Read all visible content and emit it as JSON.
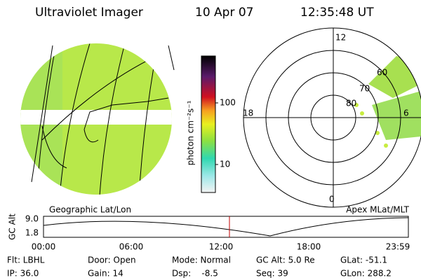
{
  "header": {
    "title": "Ultraviolet Imager",
    "date": "10 Apr 07",
    "time": "12:35:48 UT"
  },
  "colorbar": {
    "label": "photon cm⁻²s⁻¹",
    "ticks": [
      100,
      10
    ]
  },
  "geo_caption": "Geographic Lat/Lon",
  "polar": {
    "caption": "Apex MLat/MLT",
    "mlt": {
      "top": "12",
      "left": "18",
      "right": "6",
      "bottom": "0"
    },
    "mlat": [
      80,
      70,
      60
    ]
  },
  "altitude": {
    "ylabel": "GC Alt",
    "yticks": [
      "9.0",
      "1.8"
    ],
    "xticks": [
      "00:00",
      "06:00",
      "12:00",
      "18:00",
      "23:59"
    ]
  },
  "footer": [
    [
      "Flt: LBHL",
      "Door: Open",
      "Mode: Normal",
      "GC Alt: 5.0 Re",
      "GLat: -51.1"
    ],
    [
      "IP: 36.0",
      "Gain: 14",
      "Dsp:    -8.5",
      "Seq: 39",
      "GLon: 288.2"
    ]
  ]
}
